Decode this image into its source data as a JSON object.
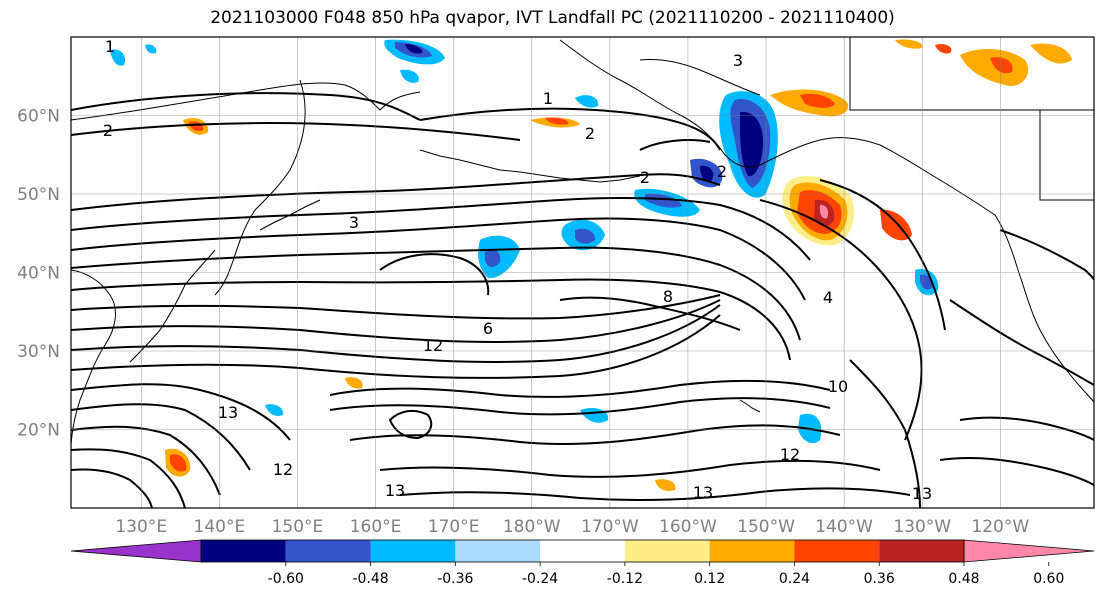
{
  "title": "2021103000 F048 850 hPa qvapor, IVT Landfall PC (2021110200 - 2021110400)",
  "axes": {
    "lon_labels": [
      "130°E",
      "140°E",
      "150°E",
      "160°E",
      "170°E",
      "180°W",
      "170°W",
      "160°W",
      "150°W",
      "140°W",
      "130°W",
      "120°W"
    ],
    "lat_labels": [
      "60°N",
      "50°N",
      "40°N",
      "30°N",
      "20°N"
    ],
    "lon_range": [
      121,
      252
    ],
    "lat_range": [
      10,
      70
    ],
    "grid": true,
    "label_color": "#808080"
  },
  "colorbar": {
    "colors": [
      "#9933cc",
      "#00007f",
      "#3355cc",
      "#00bbff",
      "#aaddff",
      "#ffffff",
      "#ffee88",
      "#ffaa00",
      "#ff4400",
      "#bb2222",
      "#ff88aa"
    ],
    "tick_labels": [
      "-0.60",
      "-0.48",
      "-0.36",
      "-0.24",
      "-0.12",
      "0.12",
      "0.24",
      "0.36",
      "0.48",
      "0.60"
    ],
    "extend": "both"
  },
  "contour_labels": [
    "1",
    "1",
    "2",
    "2",
    "2",
    "2",
    "3",
    "3",
    "4",
    "6",
    "8",
    "10",
    "12",
    "12",
    "12",
    "13",
    "13",
    "13",
    "13"
  ]
}
